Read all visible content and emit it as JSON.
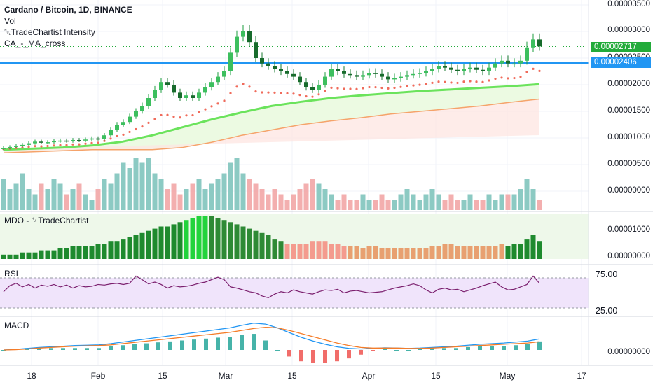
{
  "legend": {
    "title": "Cardano / Bitcoin, 1D, BINANCE",
    "vol": "Vol",
    "intensity": "␀TradeChartist Intensity",
    "ma_cross": "CA_-_MA_cross",
    "mdo": "MDO - ␀TradeChartist",
    "rsi": "RSI",
    "macd": "MACD"
  },
  "price_axis": {
    "ticks": [
      "0.00003500",
      "0.00003000",
      "0.00002500",
      "0.00002000",
      "0.00001500",
      "0.00001000",
      "0.00000500",
      "0.00000000"
    ],
    "last_price": "0.00002717",
    "level_price": "0.00002406"
  },
  "mdo_axis": {
    "ticks": [
      "0.00001000",
      "0.00000000"
    ]
  },
  "rsi_axis": {
    "ticks": [
      "75.00",
      "25.00"
    ]
  },
  "macd_axis": {
    "ticks": [
      "0.00000000"
    ]
  },
  "time_axis": {
    "labels": [
      "18",
      "Feb",
      "15",
      "Mar",
      "15",
      "Apr",
      "15",
      "May",
      "17"
    ]
  },
  "colors": {
    "bull": "#1b9e3e",
    "bear": "#1a7a30",
    "last_price_badge": "#22ab3a",
    "level_line": "#2196f3",
    "ma_fast": "#6be35c",
    "ma_slow": "#f5a36a",
    "ma_dots": "#f06b5b",
    "rsi_line": "#7b1f6e",
    "rsi_band": "#f0e4fb",
    "macd_line": "#2196f3",
    "signal_line": "#f57c28",
    "vol_up": "#7fc4bd",
    "vol_down": "#f2a6a6"
  },
  "chart_data": [
    {
      "type": "candlestick",
      "title": "Cardano / Bitcoin, 1D, BINANCE",
      "ylim": [
        0,
        3.5e-05
      ],
      "x_range": [
        "Jan 10",
        "May 20"
      ],
      "horizontal_level": 2.406e-05,
      "last_price": 2.717e-05,
      "series": [
        {
          "name": "Close",
          "values": [
            8.1e-06,
            8.3e-06,
            8.5e-06,
            8.7e-06,
            9e-06,
            9.3e-06,
            9.1e-06,
            9.2e-06,
            9.4e-06,
            9.5e-06,
            9.4e-06,
            9.6e-06,
            9.5e-06,
            9.7e-06,
            9.9e-06,
            9.8e-06,
            1.05e-05,
            1.15e-05,
            1.25e-05,
            1.3e-05,
            1.4e-05,
            1.5e-05,
            1.6e-05,
            1.75e-05,
            1.9e-05,
            2.05e-05,
            2e-05,
            1.85e-05,
            1.75e-05,
            1.8e-05,
            1.75e-05,
            1.85e-05,
            1.95e-05,
            2.05e-05,
            2.15e-05,
            2.25e-05,
            2.6e-05,
            2.9e-05,
            3e-05,
            2.8e-05,
            2.5e-05,
            2.4e-05,
            2.35e-05,
            2.3e-05,
            2.25e-05,
            2.2e-05,
            2.15e-05,
            2.05e-05,
            1.95e-05,
            1.9e-05,
            2e-05,
            2.15e-05,
            2.3e-05,
            2.25e-05,
            2.2e-05,
            2.18e-05,
            2.15e-05,
            2.18e-05,
            2.22e-05,
            2.2e-05,
            2.15e-05,
            2.1e-05,
            2.12e-05,
            2.15e-05,
            2.18e-05,
            2.2e-05,
            2.22e-05,
            2.25e-05,
            2.3e-05,
            2.35e-05,
            2.32e-05,
            2.28e-05,
            2.25e-05,
            2.3e-05,
            2.32e-05,
            2.28e-05,
            2.25e-05,
            2.32e-05,
            2.4e-05,
            2.45e-05,
            2.4e-05,
            2.4e-05,
            2.45e-05,
            2.7e-05,
            2.85e-05,
            2.72e-05
          ]
        },
        {
          "name": "MA fast",
          "values": [
            7.8e-06,
            8e-06,
            8.2e-06,
            8.6e-06,
            9.3e-06,
            1.05e-05,
            1.2e-05,
            1.35e-05,
            1.48e-05,
            1.6e-05,
            1.68e-05,
            1.75e-05,
            1.8e-05,
            1.84e-05,
            1.88e-05,
            1.91e-05,
            1.94e-05,
            1.97e-05,
            2.01e-05
          ]
        },
        {
          "name": "MA slow",
          "values": [
            7.2e-06,
            7.4e-06,
            7.6e-06,
            7.8e-06,
            7.8e-06,
            7.8e-06,
            8.2e-06,
            9.2e-06,
            1.05e-05,
            1.15e-05,
            1.25e-05,
            1.32e-05,
            1.38e-05,
            1.45e-05,
            1.5e-05,
            1.55e-05,
            1.6e-05,
            1.67e-05,
            1.73e-05
          ]
        }
      ]
    },
    {
      "type": "bar",
      "title": "Vol",
      "series": [
        {
          "name": "Vol",
          "values": [
            0.6,
            0.4,
            0.5,
            0.7,
            0.4,
            0.3,
            0.5,
            0.4,
            0.6,
            0.5,
            0.3,
            0.4,
            0.5,
            0.3,
            0.2,
            0.4,
            0.6,
            0.5,
            0.7,
            0.9,
            0.8,
            1.0,
            0.9,
            1.0,
            0.7,
            0.6,
            0.4,
            0.5,
            0.3,
            0.4,
            0.5,
            0.6,
            0.4,
            0.5,
            0.6,
            0.7,
            0.9,
            1.0,
            0.7,
            0.6,
            0.5,
            0.4,
            0.3,
            0.4,
            0.3,
            0.2,
            0.3,
            0.4,
            0.5,
            0.6,
            0.5,
            0.4,
            0.3,
            0.2,
            0.3,
            0.2,
            0.2,
            0.3,
            0.2,
            0.2,
            0.3,
            0.2,
            0.2,
            0.3,
            0.4,
            0.3,
            0.2,
            0.3,
            0.4,
            0.3,
            0.2,
            0.3,
            0.2,
            0.2,
            0.3,
            0.2,
            0.2,
            0.3,
            0.2,
            0.3,
            0.3,
            0.3,
            0.4,
            0.6,
            0.4,
            0.2
          ]
        }
      ]
    },
    {
      "type": "bar",
      "title": "MDO - ␀TradeChartist",
      "series": [
        {
          "name": "MDO",
          "values": [
            0.1,
            0.1,
            0.1,
            0.15,
            0.15,
            0.15,
            0.2,
            0.2,
            0.2,
            0.25,
            0.25,
            0.3,
            0.3,
            0.3,
            0.3,
            0.35,
            0.35,
            0.4,
            0.4,
            0.45,
            0.5,
            0.55,
            0.6,
            0.65,
            0.7,
            0.75,
            0.75,
            0.8,
            0.85,
            0.9,
            0.95,
            1.0,
            1.0,
            1.0,
            0.95,
            0.9,
            0.85,
            0.8,
            0.75,
            0.7,
            0.65,
            0.6,
            0.55,
            0.45,
            0.4,
            0.35,
            0.35,
            0.35,
            0.35,
            0.4,
            0.4,
            0.4,
            0.35,
            0.35,
            0.3,
            0.3,
            0.3,
            0.25,
            0.3,
            0.3,
            0.25,
            0.25,
            0.25,
            0.25,
            0.25,
            0.25,
            0.25,
            0.25,
            0.3,
            0.3,
            0.35,
            0.35,
            0.3,
            0.3,
            0.3,
            0.3,
            0.3,
            0.3,
            0.3,
            0.35,
            0.3,
            0.35,
            0.35,
            0.45,
            0.55,
            0.4
          ]
        }
      ]
    },
    {
      "type": "line",
      "title": "RSI",
      "ylim": [
        25,
        75
      ],
      "series": [
        {
          "name": "RSI",
          "values": [
            52,
            62,
            66,
            60,
            64,
            58,
            63,
            61,
            64,
            60,
            63,
            58,
            62,
            60,
            61,
            64,
            63,
            65,
            66,
            64,
            66,
            78,
            72,
            65,
            68,
            64,
            58,
            62,
            60,
            61,
            63,
            66,
            68,
            72,
            76,
            72,
            60,
            58,
            55,
            52,
            50,
            45,
            42,
            48,
            52,
            50,
            55,
            52,
            50,
            48,
            52,
            55,
            54,
            56,
            50,
            53,
            54,
            52,
            50,
            51,
            52,
            55,
            58,
            60,
            62,
            65,
            62,
            55,
            50,
            56,
            58,
            55,
            56,
            52,
            55,
            58,
            62,
            65,
            68,
            60,
            55,
            56,
            60,
            64,
            78,
            66
          ]
        }
      ]
    },
    {
      "type": "line",
      "title": "MACD",
      "series": [
        {
          "name": "MACD",
          "values": [
            0,
            0.02,
            0.05,
            0.08,
            0.1,
            0.12,
            0.14,
            0.15,
            0.16,
            0.2,
            0.25,
            0.3,
            0.35,
            0.4,
            0.45,
            0.5,
            0.55,
            0.6,
            0.65,
            0.7,
            0.78,
            0.85,
            0.82,
            0.7,
            0.55,
            0.4,
            0.28,
            0.18,
            0.1,
            0.05,
            0.03,
            0.05,
            0.07,
            0.06,
            0.05,
            0.06,
            0.08,
            0.1,
            0.12,
            0.15,
            0.18,
            0.2,
            0.22,
            0.25,
            0.28,
            0.35
          ]
        },
        {
          "name": "Signal",
          "values": [
            0,
            0.01,
            0.03,
            0.06,
            0.08,
            0.1,
            0.12,
            0.13,
            0.14,
            0.16,
            0.2,
            0.24,
            0.28,
            0.32,
            0.36,
            0.4,
            0.44,
            0.48,
            0.52,
            0.56,
            0.62,
            0.68,
            0.72,
            0.7,
            0.62,
            0.52,
            0.42,
            0.32,
            0.22,
            0.14,
            0.08,
            0.06,
            0.06,
            0.06,
            0.05,
            0.05,
            0.06,
            0.08,
            0.1,
            0.12,
            0.14,
            0.16,
            0.18,
            0.2,
            0.22,
            0.26
          ]
        }
      ]
    }
  ]
}
